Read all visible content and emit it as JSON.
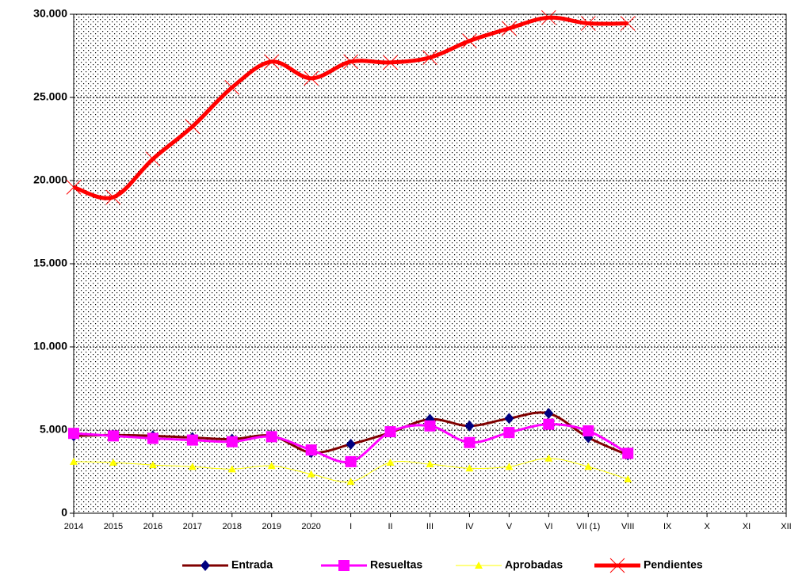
{
  "chart_data": {
    "type": "line",
    "categories": [
      "2014",
      "2015",
      "2016",
      "2017",
      "2018",
      "2019",
      "2020",
      "I",
      "II",
      "III",
      "IV",
      "V",
      "VI",
      "VII (1)",
      "VIII",
      "IX",
      "X",
      "XI",
      "XII"
    ],
    "series": [
      {
        "name": "Entrada",
        "color": "#800000",
        "marker_color": "#000080",
        "marker": "diamond",
        "values": [
          4650,
          4700,
          4650,
          4550,
          4450,
          4650,
          3650,
          4150,
          4850,
          5650,
          5250,
          5700,
          6000,
          4550,
          3500,
          null,
          null,
          null,
          null
        ]
      },
      {
        "name": "Resueltas",
        "color": "#ff00ff",
        "marker_color": "#ff00ff",
        "marker": "square",
        "values": [
          4800,
          4650,
          4500,
          4400,
          4300,
          4600,
          3800,
          3100,
          4900,
          5250,
          4250,
          4850,
          5350,
          4950,
          3600,
          null,
          null,
          null,
          null
        ]
      },
      {
        "name": "Aprobadas",
        "color": "#ffff00",
        "marker_color": "#ffff00",
        "marker": "triangle",
        "values": [
          3100,
          3050,
          2900,
          2800,
          2650,
          2850,
          2350,
          1900,
          3050,
          2950,
          2700,
          2800,
          3300,
          2800,
          2050,
          null,
          null,
          null,
          null
        ]
      },
      {
        "name": "Pendientes",
        "color": "#ff0000",
        "marker_color": "#ff0000",
        "marker": "x",
        "values": [
          19600,
          19000,
          21300,
          23250,
          25600,
          27150,
          26150,
          27150,
          27100,
          27400,
          28400,
          29150,
          29800,
          29450,
          29450,
          null,
          null,
          null,
          null
        ]
      }
    ],
    "ylim": [
      0,
      30000
    ],
    "yticks": [
      0,
      {
        "value": 5000,
        "label": "5.000"
      },
      {
        "value": 10000,
        "label": "10.000"
      },
      {
        "value": 15000,
        "label": "15.000"
      },
      {
        "value": 20000,
        "label": "20.000"
      },
      {
        "value": 25000,
        "label": "25.000"
      },
      {
        "value": 30000,
        "label": "30.000"
      }
    ],
    "grid": true,
    "legend": "bottom"
  }
}
